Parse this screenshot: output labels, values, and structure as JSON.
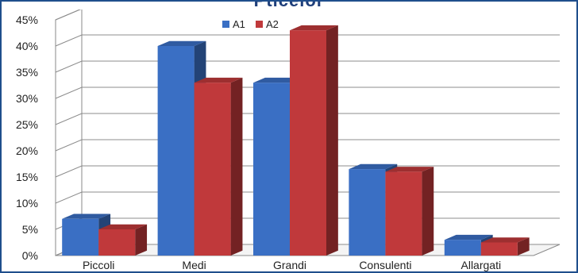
{
  "chart_data": {
    "type": "bar",
    "title": "Piccoli",
    "categories": [
      "Piccoli",
      "Medi",
      "Grandi",
      "Consulenti",
      "Allargati"
    ],
    "series": [
      {
        "name": "A1",
        "values": [
          7,
          40,
          33,
          16.5,
          3
        ]
      },
      {
        "name": "A2",
        "values": [
          5,
          33,
          43,
          16,
          2.5
        ]
      }
    ],
    "ylim": [
      0,
      45
    ],
    "yticks": [
      "0%",
      "5%",
      "10%",
      "15%",
      "20%",
      "25%",
      "30%",
      "35%",
      "40%",
      "45%"
    ],
    "grid": true,
    "legend_position": "top-center",
    "colors": {
      "A1": "#3a6fc4",
      "A2": "#c0393b"
    }
  }
}
